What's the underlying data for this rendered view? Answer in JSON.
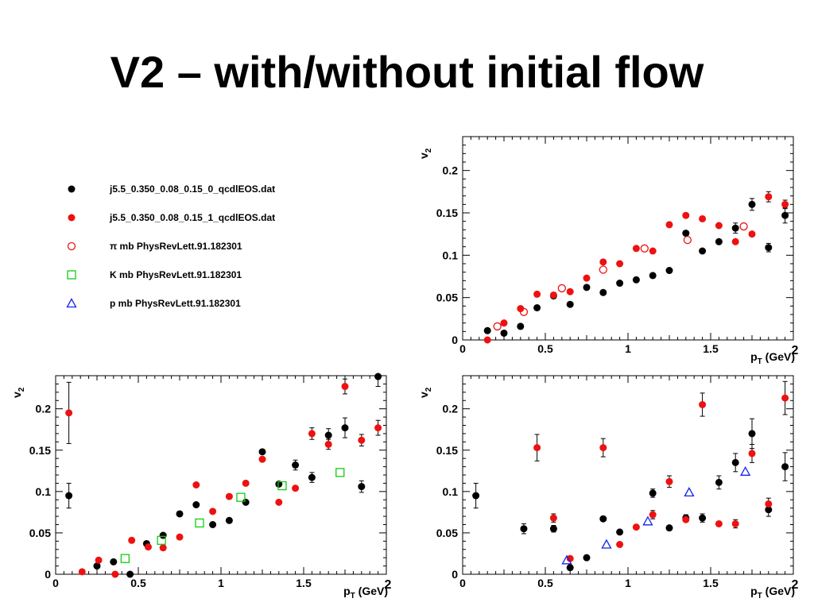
{
  "title": "V2 – with/without initial flow",
  "legend": [
    {
      "label": "j5.5_0.350_0.08_0.15_0_qcdlEOS.dat",
      "marker": "filled-circle",
      "color": "#000000"
    },
    {
      "label": "j5.5_0.350_0.08_0.15_1_qcdlEOS.dat",
      "marker": "filled-circle",
      "color": "#ee1111"
    },
    {
      "label": "π mb PhysRevLett.91.182301",
      "marker": "open-circle",
      "color": "#ee1111"
    },
    {
      "label": "K mb PhysRevLett.91.182301",
      "marker": "open-square",
      "color": "#11cc11"
    },
    {
      "label": "p mb PhysRevLett.91.182301",
      "marker": "open-triangle",
      "color": "#1122ee"
    }
  ],
  "chart_data": [
    {
      "id": "pion-panel",
      "type": "scatter",
      "xlabel": "p_T (GeV)",
      "ylabel": "v_2",
      "xlim": [
        0,
        2
      ],
      "ylim": [
        0,
        0.24
      ],
      "xticks": [
        "0",
        "0.5",
        "1",
        "1.5",
        "2"
      ],
      "yticks": [
        "0",
        "0.05",
        "0.1",
        "0.15",
        "0.2"
      ],
      "series": [
        {
          "marker": "filled-circle",
          "color": "#000000",
          "points": [
            {
              "x": 0.15,
              "y": 0.011
            },
            {
              "x": 0.25,
              "y": 0.008
            },
            {
              "x": 0.35,
              "y": 0.016
            },
            {
              "x": 0.45,
              "y": 0.038
            },
            {
              "x": 0.55,
              "y": 0.052
            },
            {
              "x": 0.65,
              "y": 0.042
            },
            {
              "x": 0.75,
              "y": 0.062
            },
            {
              "x": 0.85,
              "y": 0.056
            },
            {
              "x": 0.95,
              "y": 0.067
            },
            {
              "x": 1.05,
              "y": 0.071
            },
            {
              "x": 1.15,
              "y": 0.076
            },
            {
              "x": 1.25,
              "y": 0.082
            },
            {
              "x": 1.35,
              "y": 0.126
            },
            {
              "x": 1.45,
              "y": 0.105
            },
            {
              "x": 1.55,
              "y": 0.116
            },
            {
              "x": 1.65,
              "y": 0.132,
              "err": 0.006
            },
            {
              "x": 1.75,
              "y": 0.16,
              "err": 0.007
            },
            {
              "x": 1.85,
              "y": 0.109,
              "err": 0.005
            },
            {
              "x": 1.95,
              "y": 0.147,
              "err": 0.009
            }
          ]
        },
        {
          "marker": "filled-circle",
          "color": "#ee1111",
          "points": [
            {
              "x": 0.15,
              "y": 0.0
            },
            {
              "x": 0.25,
              "y": 0.02
            },
            {
              "x": 0.35,
              "y": 0.037
            },
            {
              "x": 0.45,
              "y": 0.054
            },
            {
              "x": 0.55,
              "y": 0.053
            },
            {
              "x": 0.65,
              "y": 0.057
            },
            {
              "x": 0.75,
              "y": 0.073
            },
            {
              "x": 0.85,
              "y": 0.092
            },
            {
              "x": 0.95,
              "y": 0.09
            },
            {
              "x": 1.05,
              "y": 0.108
            },
            {
              "x": 1.15,
              "y": 0.105
            },
            {
              "x": 1.25,
              "y": 0.136
            },
            {
              "x": 1.35,
              "y": 0.147
            },
            {
              "x": 1.45,
              "y": 0.143
            },
            {
              "x": 1.55,
              "y": 0.135
            },
            {
              "x": 1.65,
              "y": 0.116
            },
            {
              "x": 1.75,
              "y": 0.125
            },
            {
              "x": 1.85,
              "y": 0.169,
              "err": 0.006
            },
            {
              "x": 1.95,
              "y": 0.16,
              "err": 0.005
            }
          ]
        },
        {
          "marker": "open-circle",
          "color": "#ee1111",
          "points": [
            {
              "x": 0.21,
              "y": 0.016
            },
            {
              "x": 0.37,
              "y": 0.033
            },
            {
              "x": 0.6,
              "y": 0.061
            },
            {
              "x": 0.85,
              "y": 0.083
            },
            {
              "x": 1.1,
              "y": 0.108
            },
            {
              "x": 1.36,
              "y": 0.118
            },
            {
              "x": 1.7,
              "y": 0.134
            }
          ]
        }
      ]
    },
    {
      "id": "kaon-panel",
      "type": "scatter",
      "xlabel": "p_T (GeV)",
      "ylabel": "v_2",
      "xlim": [
        0,
        2
      ],
      "ylim": [
        0,
        0.24
      ],
      "xticks": [
        "0",
        "0.5",
        "1",
        "1.5",
        "2"
      ],
      "yticks": [
        "0",
        "0.05",
        "0.1",
        "0.15",
        "0.2"
      ],
      "series": [
        {
          "marker": "filled-circle",
          "color": "#000000",
          "points": [
            {
              "x": 0.08,
              "y": 0.095,
              "err": 0.015
            },
            {
              "x": 0.25,
              "y": 0.01
            },
            {
              "x": 0.35,
              "y": 0.015
            },
            {
              "x": 0.45,
              "y": 0.0
            },
            {
              "x": 0.55,
              "y": 0.037
            },
            {
              "x": 0.65,
              "y": 0.047
            },
            {
              "x": 0.75,
              "y": 0.073
            },
            {
              "x": 0.85,
              "y": 0.084
            },
            {
              "x": 0.95,
              "y": 0.06
            },
            {
              "x": 1.05,
              "y": 0.065
            },
            {
              "x": 1.15,
              "y": 0.087
            },
            {
              "x": 1.25,
              "y": 0.148
            },
            {
              "x": 1.35,
              "y": 0.109
            },
            {
              "x": 1.45,
              "y": 0.132,
              "err": 0.006
            },
            {
              "x": 1.55,
              "y": 0.117,
              "err": 0.006
            },
            {
              "x": 1.65,
              "y": 0.168,
              "err": 0.008
            },
            {
              "x": 1.75,
              "y": 0.177,
              "err": 0.012
            },
            {
              "x": 1.85,
              "y": 0.106,
              "err": 0.007
            },
            {
              "x": 1.95,
              "y": 0.239,
              "err": 0.012
            }
          ]
        },
        {
          "marker": "filled-circle",
          "color": "#ee1111",
          "points": [
            {
              "x": 0.08,
              "y": 0.195,
              "err": 0.037
            },
            {
              "x": 0.16,
              "y": 0.003
            },
            {
              "x": 0.26,
              "y": 0.017
            },
            {
              "x": 0.36,
              "y": 0.0
            },
            {
              "x": 0.46,
              "y": 0.041
            },
            {
              "x": 0.56,
              "y": 0.033
            },
            {
              "x": 0.65,
              "y": 0.032
            },
            {
              "x": 0.75,
              "y": 0.045
            },
            {
              "x": 0.85,
              "y": 0.108
            },
            {
              "x": 0.95,
              "y": 0.076
            },
            {
              "x": 1.05,
              "y": 0.094
            },
            {
              "x": 1.15,
              "y": 0.11
            },
            {
              "x": 1.25,
              "y": 0.139
            },
            {
              "x": 1.35,
              "y": 0.087
            },
            {
              "x": 1.45,
              "y": 0.104
            },
            {
              "x": 1.55,
              "y": 0.17,
              "err": 0.007
            },
            {
              "x": 1.65,
              "y": 0.157,
              "err": 0.006
            },
            {
              "x": 1.75,
              "y": 0.227,
              "err": 0.009
            },
            {
              "x": 1.85,
              "y": 0.162,
              "err": 0.007
            },
            {
              "x": 1.95,
              "y": 0.177,
              "err": 0.009
            }
          ]
        },
        {
          "marker": "open-square",
          "color": "#11cc11",
          "points": [
            {
              "x": 0.42,
              "y": 0.019
            },
            {
              "x": 0.64,
              "y": 0.041
            },
            {
              "x": 0.87,
              "y": 0.062
            },
            {
              "x": 1.12,
              "y": 0.093
            },
            {
              "x": 1.37,
              "y": 0.107
            },
            {
              "x": 1.72,
              "y": 0.123
            }
          ]
        }
      ]
    },
    {
      "id": "proton-panel",
      "type": "scatter",
      "xlabel": "p_T (GeV)",
      "ylabel": "v_2",
      "xlim": [
        0,
        2
      ],
      "ylim": [
        0,
        0.24
      ],
      "xticks": [
        "0",
        "0.5",
        "1",
        "1.5",
        "2"
      ],
      "yticks": [
        "0",
        "0.05",
        "0.1",
        "0.15",
        "0.2"
      ],
      "series": [
        {
          "marker": "filled-circle",
          "color": "#000000",
          "points": [
            {
              "x": 0.08,
              "y": 0.095,
              "err": 0.015
            },
            {
              "x": 0.37,
              "y": 0.055,
              "err": 0.006
            },
            {
              "x": 0.55,
              "y": 0.055,
              "err": 0.004
            },
            {
              "x": 0.65,
              "y": 0.008
            },
            {
              "x": 0.75,
              "y": 0.02
            },
            {
              "x": 0.85,
              "y": 0.067
            },
            {
              "x": 0.95,
              "y": 0.051
            },
            {
              "x": 1.15,
              "y": 0.098,
              "err": 0.005
            },
            {
              "x": 1.25,
              "y": 0.056
            },
            {
              "x": 1.35,
              "y": 0.068,
              "err": 0.004
            },
            {
              "x": 1.45,
              "y": 0.068,
              "err": 0.005
            },
            {
              "x": 1.55,
              "y": 0.111,
              "err": 0.008
            },
            {
              "x": 1.65,
              "y": 0.135,
              "err": 0.011
            },
            {
              "x": 1.75,
              "y": 0.17,
              "err": 0.018
            },
            {
              "x": 1.85,
              "y": 0.078,
              "err": 0.008
            },
            {
              "x": 1.95,
              "y": 0.13,
              "err": 0.017
            }
          ]
        },
        {
          "marker": "filled-circle",
          "color": "#ee1111",
          "points": [
            {
              "x": 0.45,
              "y": 0.153,
              "err": 0.016
            },
            {
              "x": 0.55,
              "y": 0.068,
              "err": 0.005
            },
            {
              "x": 0.65,
              "y": 0.019
            },
            {
              "x": 0.85,
              "y": 0.153,
              "err": 0.011
            },
            {
              "x": 0.95,
              "y": 0.036
            },
            {
              "x": 1.05,
              "y": 0.057
            },
            {
              "x": 1.15,
              "y": 0.072,
              "err": 0.005
            },
            {
              "x": 1.25,
              "y": 0.112,
              "err": 0.007
            },
            {
              "x": 1.35,
              "y": 0.066
            },
            {
              "x": 1.45,
              "y": 0.205,
              "err": 0.014
            },
            {
              "x": 1.55,
              "y": 0.061
            },
            {
              "x": 1.65,
              "y": 0.061,
              "err": 0.005
            },
            {
              "x": 1.75,
              "y": 0.146,
              "err": 0.011
            },
            {
              "x": 1.85,
              "y": 0.085,
              "err": 0.007
            },
            {
              "x": 1.95,
              "y": 0.213,
              "err": 0.02
            }
          ]
        },
        {
          "marker": "open-triangle",
          "color": "#1122ee",
          "points": [
            {
              "x": 0.63,
              "y": 0.017
            },
            {
              "x": 0.87,
              "y": 0.036
            },
            {
              "x": 1.12,
              "y": 0.064
            },
            {
              "x": 1.37,
              "y": 0.099
            },
            {
              "x": 1.71,
              "y": 0.124
            }
          ]
        }
      ]
    }
  ]
}
